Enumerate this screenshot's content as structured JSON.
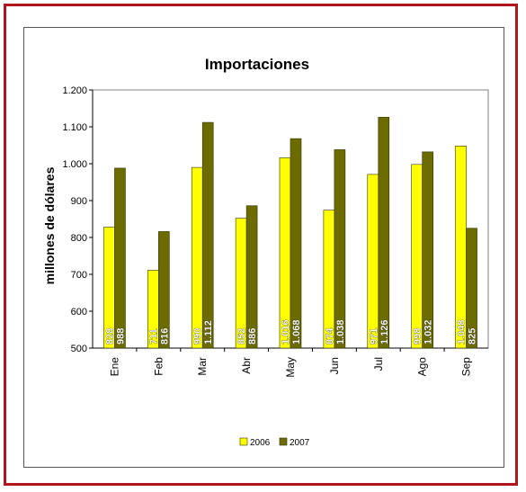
{
  "chart_data": {
    "type": "bar",
    "title": "Importaciones",
    "xlabel": "",
    "ylabel": "millones de dólares",
    "ylim": [
      500,
      1200
    ],
    "yticks": [
      500,
      600,
      700,
      800,
      900,
      1000,
      1100,
      1200
    ],
    "ytick_labels": [
      "500",
      "600",
      "700",
      "800",
      "900",
      "1.000",
      "1.100",
      "1.200"
    ],
    "categories": [
      "Ene",
      "Feb",
      "Mar",
      "Abr",
      "May",
      "Jun",
      "Jul",
      "Ago",
      "Sep"
    ],
    "series": [
      {
        "name": "2006",
        "color": "#ffff00",
        "values": [
          828,
          711,
          990,
          852,
          1016,
          874,
          971,
          998,
          1048
        ],
        "labels": [
          "828",
          "711",
          "990",
          "852",
          "1.016",
          "874",
          "971",
          "998",
          "1.048"
        ]
      },
      {
        "name": "2007",
        "color": "#6b6b00",
        "values": [
          988,
          816,
          1112,
          886,
          1068,
          1038,
          1126,
          1032,
          825
        ],
        "labels": [
          "988",
          "816",
          "1.112",
          "886",
          "1.068",
          "1.038",
          "1.126",
          "1.032",
          "825"
        ]
      }
    ],
    "grid": false,
    "legend_position": "bottom"
  },
  "colors": {
    "frame_border": "#b0151c",
    "chart_border": "#555555"
  }
}
